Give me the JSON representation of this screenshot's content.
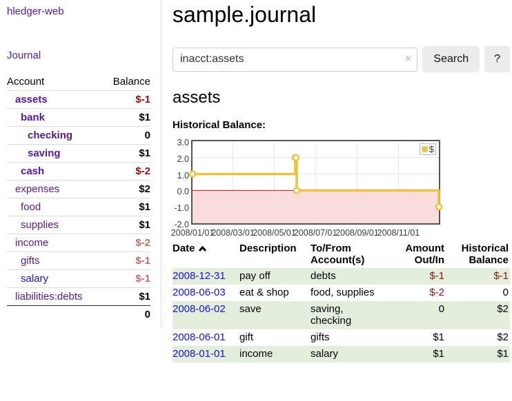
{
  "app": {
    "brand": "hledger-web",
    "nav": {
      "journal": "Journal"
    }
  },
  "colors": {
    "link_purple": "#551a8b",
    "link_blue": "#1212e0",
    "negative_strong": "#8b1212",
    "negative_soft": "#ba6e6e",
    "striped_row_green": "#e3eedd",
    "chart_line_yellow": "#edc240",
    "chart_below_zero_pink": "#fbdcdc",
    "chart_zero_line_red": "#a81616",
    "chart_border_gray": "#545454",
    "button_gray": "#ececec"
  },
  "sidebar": {
    "header": {
      "account": "Account",
      "balance": "Balance"
    },
    "accounts": [
      {
        "name": "assets",
        "indent": 1,
        "balance": "$-1",
        "bold": true,
        "negative": true
      },
      {
        "name": "bank",
        "indent": 2,
        "balance": "$1",
        "bold": true
      },
      {
        "name": "checking",
        "indent": 3,
        "balance": "0",
        "bold": true
      },
      {
        "name": "saving",
        "indent": 3,
        "balance": "$1",
        "bold": true
      },
      {
        "name": "cash",
        "indent": 2,
        "balance": "$-2",
        "bold": true,
        "negative": true
      },
      {
        "name": "expenses",
        "indent": 1,
        "balance": "$2"
      },
      {
        "name": "food",
        "indent": 2,
        "balance": "$1"
      },
      {
        "name": "supplies",
        "indent": 2,
        "balance": "$1"
      },
      {
        "name": "income",
        "indent": 1,
        "balance": "$-2",
        "negative_soft": true
      },
      {
        "name": "gifts",
        "indent": 2,
        "balance": "$-1",
        "negative_soft": true
      },
      {
        "name": "salary",
        "indent": 2,
        "balance": "$-1",
        "negative_soft": true,
        "blue": true
      },
      {
        "name": "liabilities:debts",
        "indent": 1,
        "balance": "$1"
      }
    ],
    "total": "0"
  },
  "header": {
    "title": "sample.journal"
  },
  "search": {
    "value": "inacct:assets",
    "clear_icon": "×",
    "button_label": "Search",
    "help_label": "?"
  },
  "register": {
    "heading": "assets",
    "chart_title": "Historical Balance:"
  },
  "chart_data": {
    "type": "line",
    "title": "Historical Balance",
    "legend": "$",
    "legend_position": "top-right",
    "grid": true,
    "step": true,
    "ylim": [
      -2.0,
      3.0
    ],
    "y_ticks": [
      {
        "label": "3.0",
        "v": 3
      },
      {
        "label": "2.0",
        "v": 2
      },
      {
        "label": "1.0",
        "v": 1
      },
      {
        "label": "0.0",
        "v": 0
      },
      {
        "label": "-1.0",
        "v": -1
      },
      {
        "label": "-2.0",
        "v": -2
      }
    ],
    "x_ticks": [
      {
        "label": "2008/01/01",
        "f": 0.0
      },
      {
        "label": "2008/03/01",
        "f": 0.164
      },
      {
        "label": "2008/05/01",
        "f": 0.332
      },
      {
        "label": "2008/07/01",
        "f": 0.499
      },
      {
        "label": "2008/09/01",
        "f": 0.668
      },
      {
        "label": "2008/11/01",
        "f": 0.836
      }
    ],
    "series": [
      {
        "name": "$",
        "color": "#edc240",
        "points": [
          {
            "date": "2008-01-01",
            "x": 0.0,
            "y": 1
          },
          {
            "date": "2008-06-01",
            "x": 0.417,
            "y": 2
          },
          {
            "date": "2008-06-02",
            "x": 0.42,
            "y": 2
          },
          {
            "date": "2008-06-03",
            "x": 0.423,
            "y": 0
          },
          {
            "date": "2008-12-31",
            "x": 1.0,
            "y": -1
          }
        ]
      }
    ]
  },
  "table": {
    "headers": {
      "date": "Date",
      "description": "Description",
      "accounts": "To/From Account(s)",
      "amount": "Amount Out/In",
      "balance": "Historical Balance"
    },
    "rows": [
      {
        "date": "2008-12-31",
        "description": "pay off",
        "accounts": "debts",
        "amount": "$-1",
        "balance": "$-1",
        "amount_neg": true,
        "balance_neg": true
      },
      {
        "date": "2008-06-03",
        "description": "eat & shop",
        "accounts": "food, supplies",
        "amount": "$-2",
        "balance": "0",
        "amount_neg": true
      },
      {
        "date": "2008-06-02",
        "description": "save",
        "accounts": "saving, checking",
        "amount": "0",
        "balance": "$2"
      },
      {
        "date": "2008-06-01",
        "description": "gift",
        "accounts": "gifts",
        "amount": "$1",
        "balance": "$2"
      },
      {
        "date": "2008-01-01",
        "description": "income",
        "accounts": "salary",
        "amount": "$1",
        "balance": "$1"
      }
    ]
  }
}
